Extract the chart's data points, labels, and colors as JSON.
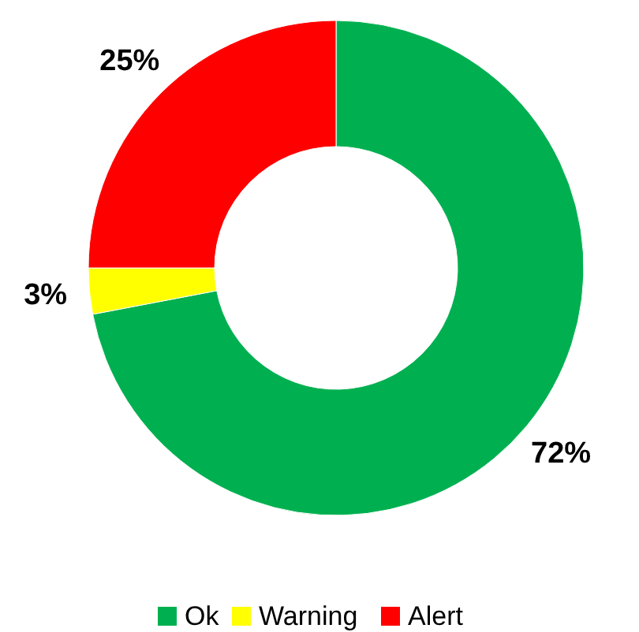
{
  "chart_data": {
    "type": "donut",
    "categories": [
      "Ok",
      "Warning",
      "Alert"
    ],
    "values": [
      72,
      3,
      25
    ],
    "value_labels": [
      "72%",
      "3%",
      "25%"
    ],
    "colors": [
      "#00b050",
      "#ffff00",
      "#ff0000"
    ],
    "legend": "bottom"
  }
}
